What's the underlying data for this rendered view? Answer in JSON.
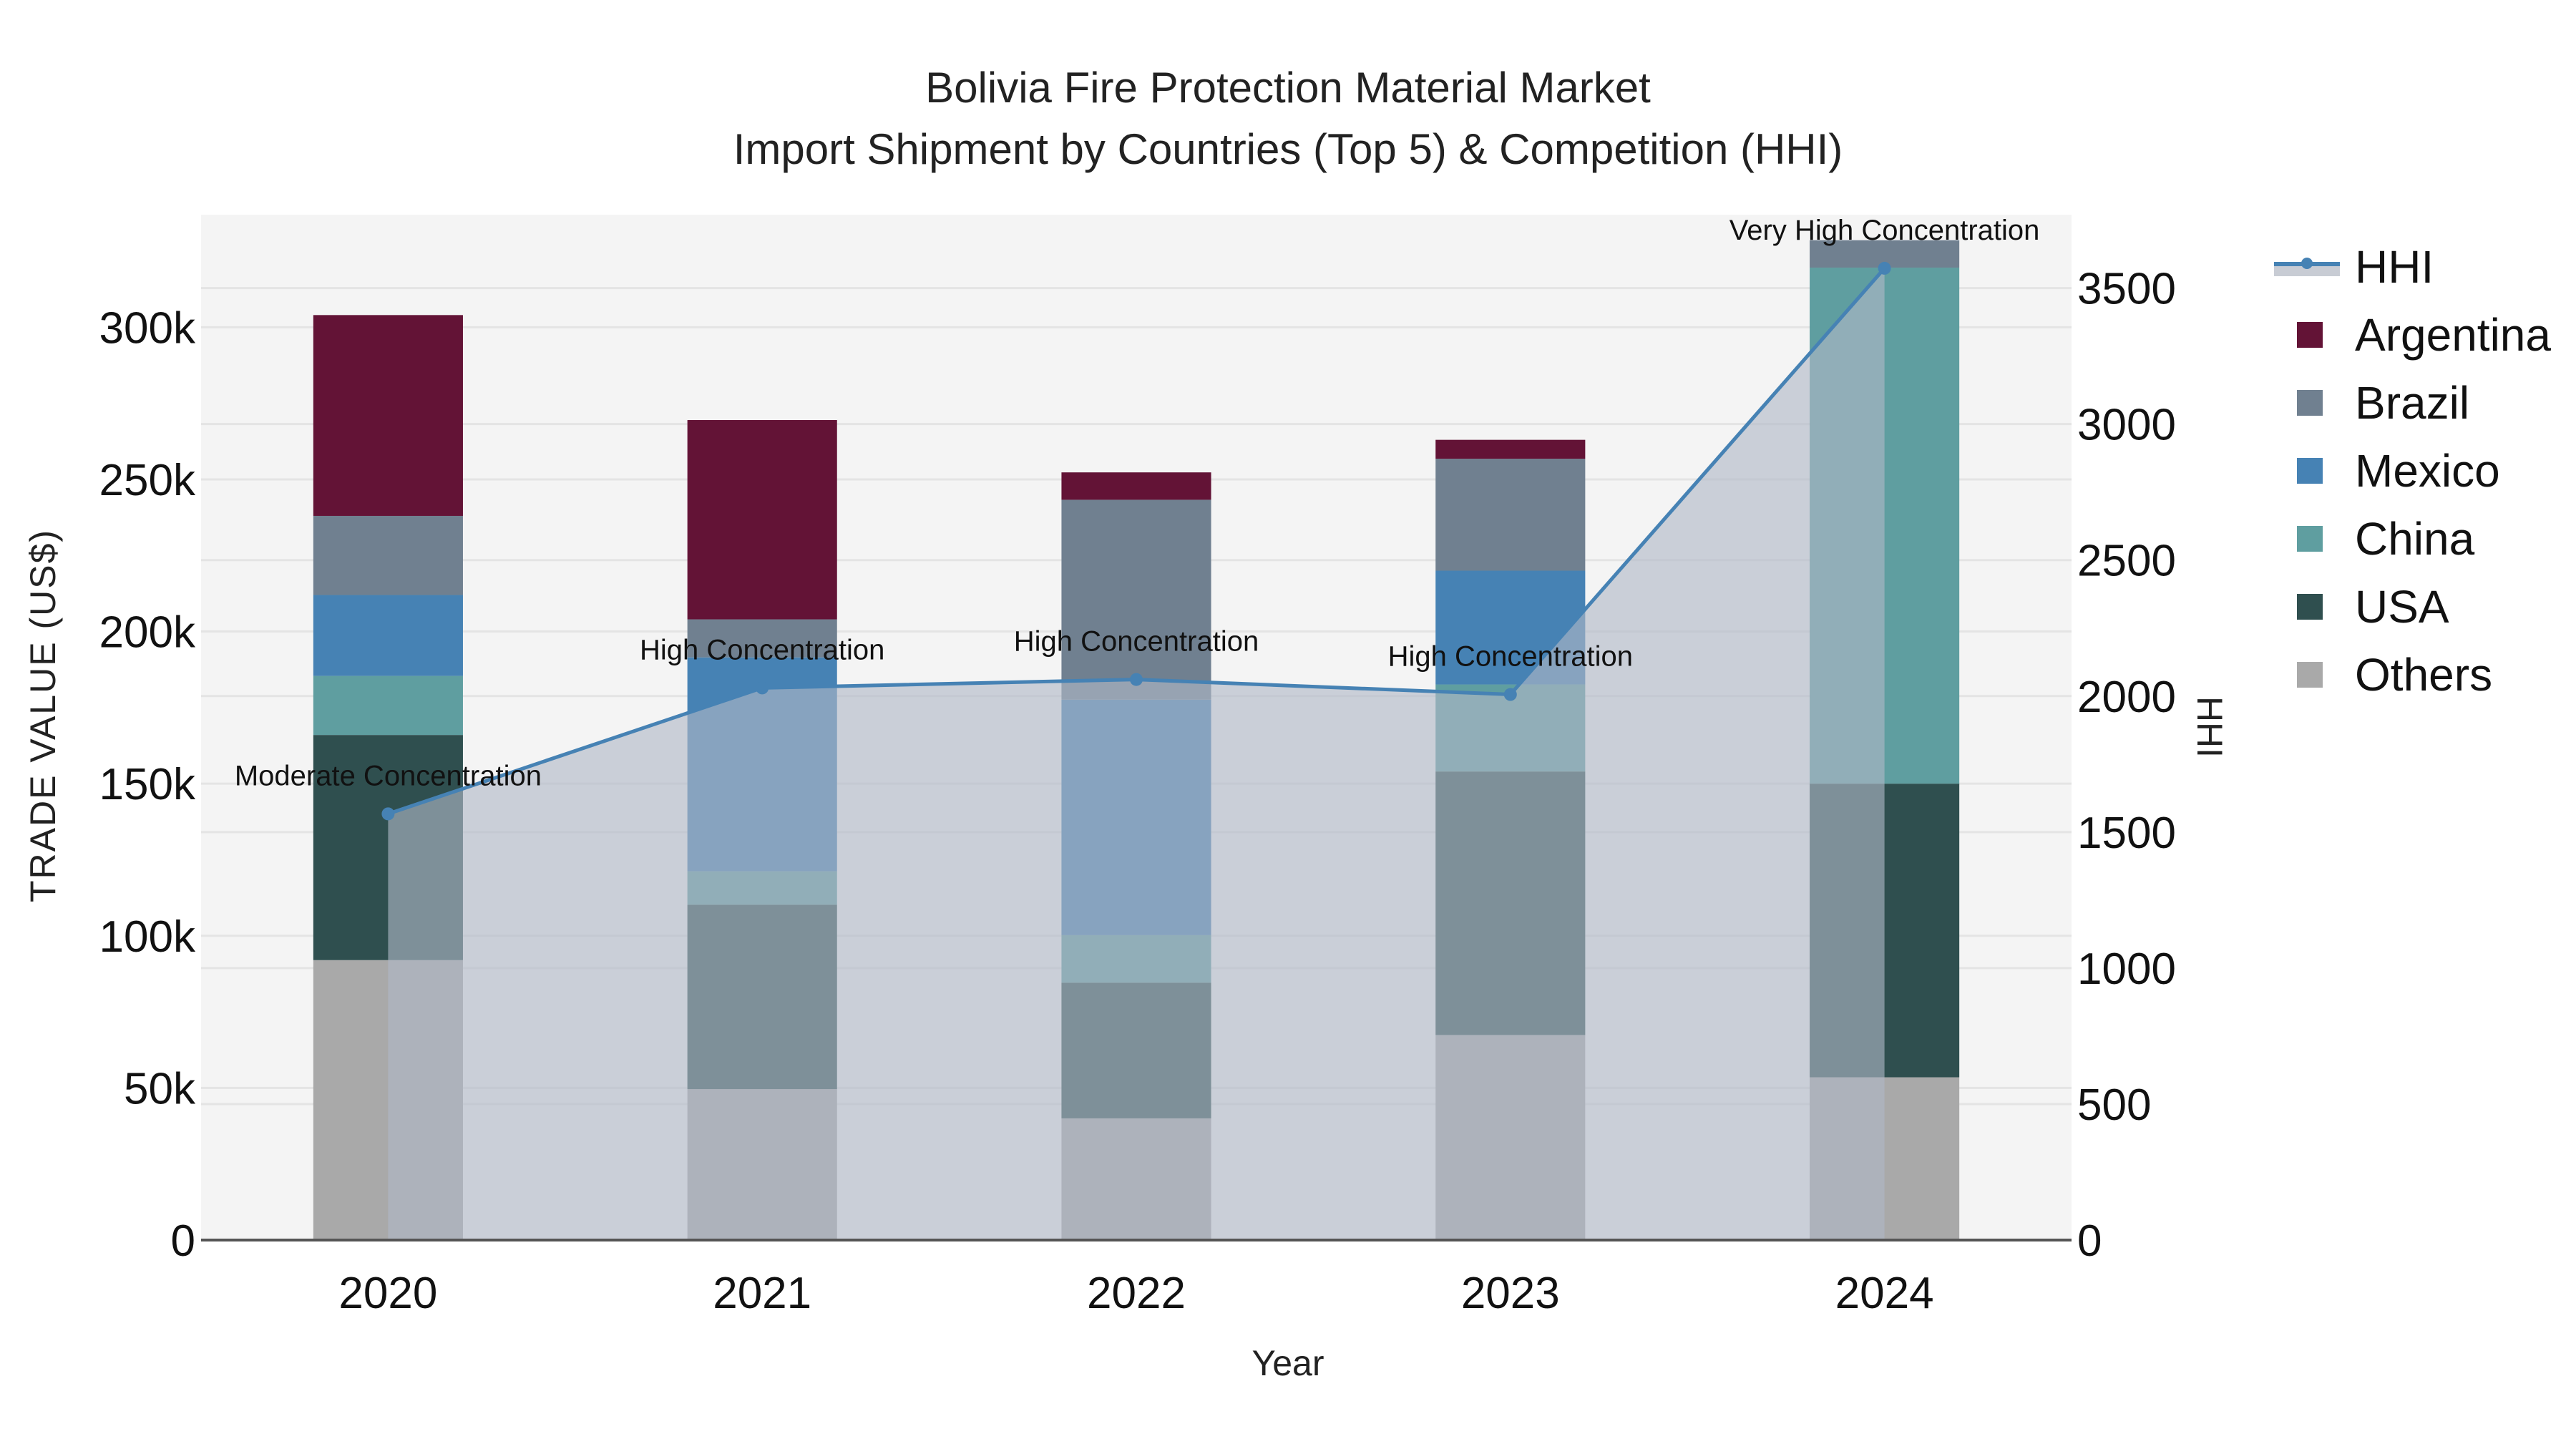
{
  "title": {
    "line1": "Bolivia Fire Protection Material Market",
    "line2": "Import Shipment by Countries (Top 5) & Competition (HHI)"
  },
  "axes": {
    "xlabel": "Year",
    "ylabel": "TRADE VALUE (US$)",
    "y2label": "HHI"
  },
  "legend": [
    {
      "name": "HHI",
      "type": "line",
      "color": "#4682B4"
    },
    {
      "name": "Argentina",
      "type": "bar",
      "color": "#631336"
    },
    {
      "name": "Brazil",
      "type": "bar",
      "color": "#708090"
    },
    {
      "name": "Mexico",
      "type": "bar",
      "color": "#4682B4"
    },
    {
      "name": "China",
      "type": "bar",
      "color": "#5F9EA0"
    },
    {
      "name": "USA",
      "type": "bar",
      "color": "#2F4F4F"
    },
    {
      "name": "Others",
      "type": "bar",
      "color": "#A9A9A9"
    }
  ],
  "chart_data": {
    "type": "bar",
    "stacked": true,
    "title": "Bolivia Fire Protection Material Market — Import Shipment by Countries (Top 5) & Competition (HHI)",
    "xlabel": "Year",
    "ylabel": "TRADE VALUE (US$)",
    "y2label": "HHI",
    "categories": [
      "2020",
      "2021",
      "2022",
      "2023",
      "2024"
    ],
    "ylim": [
      0,
      337000
    ],
    "yticks": [
      0,
      50000,
      100000,
      150000,
      200000,
      250000,
      300000
    ],
    "ytick_labels": [
      "0",
      "50k",
      "100k",
      "150k",
      "200k",
      "250k",
      "300k"
    ],
    "y2lim": [
      0,
      3770
    ],
    "y2ticks": [
      0,
      500,
      1000,
      1500,
      2000,
      2500,
      3000,
      3500
    ],
    "y2tick_labels": [
      "0",
      "500",
      "1000",
      "1500",
      "2000",
      "2500",
      "3000",
      "3500"
    ],
    "series": [
      {
        "name": "Others",
        "color": "#A9A9A9",
        "values": [
          92000,
          49600,
          40000,
          67400,
          53500
        ]
      },
      {
        "name": "USA",
        "color": "#2F4F4F",
        "values": [
          74000,
          60600,
          44600,
          86600,
          96500
        ]
      },
      {
        "name": "China",
        "color": "#5F9EA0",
        "values": [
          19400,
          11000,
          15600,
          28600,
          169600
        ]
      },
      {
        "name": "Mexico",
        "color": "#4682B4",
        "values": [
          26600,
          70300,
          77400,
          37400,
          0
        ]
      },
      {
        "name": "Brazil",
        "color": "#708090",
        "values": [
          26000,
          12500,
          65700,
          36800,
          9000
        ]
      },
      {
        "name": "Argentina",
        "color": "#631336",
        "values": [
          66000,
          65500,
          9000,
          6200,
          0
        ]
      }
    ],
    "line_series": {
      "name": "HHI",
      "axis": "y2",
      "color": "#4682B4",
      "fill": "tozeroy",
      "values": [
        1567,
        2030,
        2061,
        2006,
        3573
      ],
      "annotations": [
        "Moderate Concentration",
        "High Concentration",
        "High Concentration",
        "High Concentration",
        "Very High Concentration"
      ]
    },
    "grid": true,
    "legend_position": "right"
  }
}
